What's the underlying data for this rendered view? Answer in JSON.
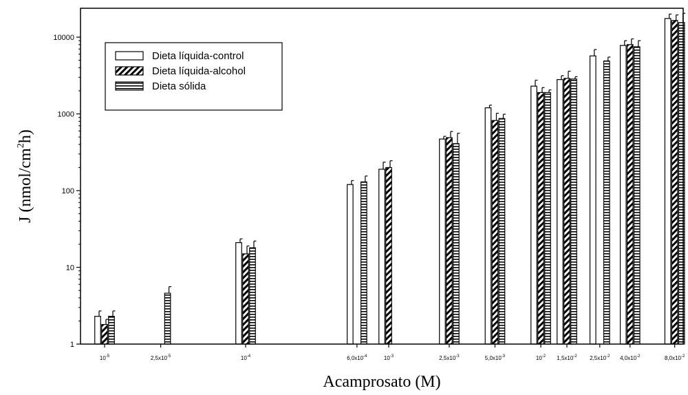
{
  "chart_data": {
    "type": "bar",
    "y_scale": "log",
    "ylim": [
      1,
      22000
    ],
    "y_ticks": [
      {
        "value": 1,
        "label": "1"
      },
      {
        "value": 10,
        "label": "10"
      },
      {
        "value": 100,
        "label": "100"
      },
      {
        "value": 1000,
        "label": "1000"
      },
      {
        "value": 10000,
        "label": "10000"
      }
    ],
    "xlabel": "Acamprosato (M)",
    "ylabel": {
      "base": "J (nmol/cm",
      "sup": "2",
      "tail": "h)"
    },
    "legend_position": "top-left",
    "categories": [
      {
        "base": "10",
        "sup": "-5",
        "value": 1e-05
      },
      {
        "base": "2,5x10",
        "sup": "-5",
        "value": 2.5e-05
      },
      {
        "base": "10",
        "sup": "-4",
        "value": 0.0001
      },
      {
        "base": "6,0x10",
        "sup": "-4",
        "value": 0.0006
      },
      {
        "base": "10",
        "sup": "-3",
        "value": 0.001
      },
      {
        "base": "2,5x10",
        "sup": "-3",
        "value": 0.0025
      },
      {
        "base": "5,0x10",
        "sup": "-3",
        "value": 0.005
      },
      {
        "base": "10",
        "sup": "-2",
        "value": 0.01
      },
      {
        "base": "1,5x10",
        "sup": "-2",
        "value": 0.015
      },
      {
        "base": "2,5x10",
        "sup": "-2",
        "value": 0.025
      },
      {
        "base": "4,0x10",
        "sup": "-2",
        "value": 0.04
      },
      {
        "base": "8,0x10",
        "sup": "-2",
        "value": 0.08
      }
    ],
    "series": [
      {
        "name": "Dieta líquida-control",
        "pattern": "open",
        "values": [
          2.3,
          null,
          21,
          120,
          190,
          470,
          1200,
          2300,
          2800,
          5700,
          7800,
          17500
        ],
        "errors": [
          0.4,
          null,
          2.5,
          15,
          45,
          40,
          100,
          450,
          350,
          1200,
          1200,
          2500
        ]
      },
      {
        "name": "Dieta líquida-alcohol",
        "pattern": "diagonal",
        "values": [
          1.8,
          null,
          15,
          null,
          200,
          490,
          820,
          1900,
          2900,
          null,
          8000,
          16500
        ],
        "errors": [
          0.3,
          null,
          4,
          null,
          45,
          100,
          200,
          300,
          700,
          null,
          1500,
          3000
        ]
      },
      {
        "name": "Dieta sólida",
        "pattern": "horizontal",
        "values": [
          2.3,
          4.6,
          18,
          130,
          null,
          410,
          870,
          1900,
          2850,
          4900,
          7500,
          15500
        ],
        "errors": [
          0.4,
          1.0,
          4,
          25,
          null,
          150,
          120,
          150,
          200,
          600,
          1500,
          5000
        ]
      }
    ]
  }
}
